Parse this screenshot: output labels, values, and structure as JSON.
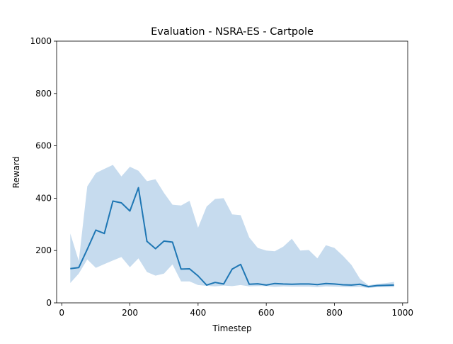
{
  "chart_data": {
    "type": "line",
    "title": "Evaluation - NSRA-ES - Cartpole",
    "xlabel": "Timestep",
    "ylabel": "Reward",
    "xlim": [
      -15,
      1015
    ],
    "ylim": [
      0,
      1000
    ],
    "xticks": [
      0,
      200,
      400,
      600,
      800,
      1000
    ],
    "yticks": [
      0,
      200,
      400,
      600,
      800,
      1000
    ],
    "grid": false,
    "legend": "none",
    "colors": {
      "line": "#1f77b4",
      "band": "#c6dbee"
    },
    "series": [
      {
        "x": [
          25,
          50,
          75,
          100,
          125,
          150,
          175,
          200,
          225,
          250,
          275,
          300,
          325,
          350,
          375,
          400,
          425,
          450,
          475,
          500,
          525,
          550,
          575,
          600,
          625,
          650,
          675,
          700,
          725,
          750,
          775,
          800,
          825,
          850,
          875,
          900,
          925,
          950,
          975
        ],
        "mean": [
          131,
          135,
          205,
          278,
          265,
          389,
          382,
          351,
          440,
          235,
          207,
          236,
          232,
          129,
          130,
          103,
          68,
          78,
          72,
          129,
          147,
          71,
          73,
          68,
          74,
          72,
          71,
          72,
          72,
          70,
          74,
          72,
          69,
          68,
          71,
          62,
          66,
          67,
          68
        ],
        "upper": [
          265,
          160,
          445,
          496,
          512,
          527,
          483,
          520,
          505,
          465,
          472,
          420,
          375,
          372,
          390,
          287,
          368,
          397,
          400,
          338,
          335,
          250,
          210,
          200,
          197,
          215,
          245,
          200,
          202,
          170,
          220,
          210,
          180,
          145,
          92,
          67,
          72,
          75,
          80
        ],
        "lower": [
          76,
          112,
          166,
          134,
          148,
          162,
          175,
          136,
          170,
          118,
          104,
          112,
          147,
          82,
          82,
          68,
          65,
          63,
          66,
          64,
          68,
          63,
          64,
          64,
          61,
          63,
          62,
          62,
          62,
          60,
          63,
          62,
          61,
          60,
          61,
          57,
          60,
          60,
          60
        ]
      }
    ]
  }
}
